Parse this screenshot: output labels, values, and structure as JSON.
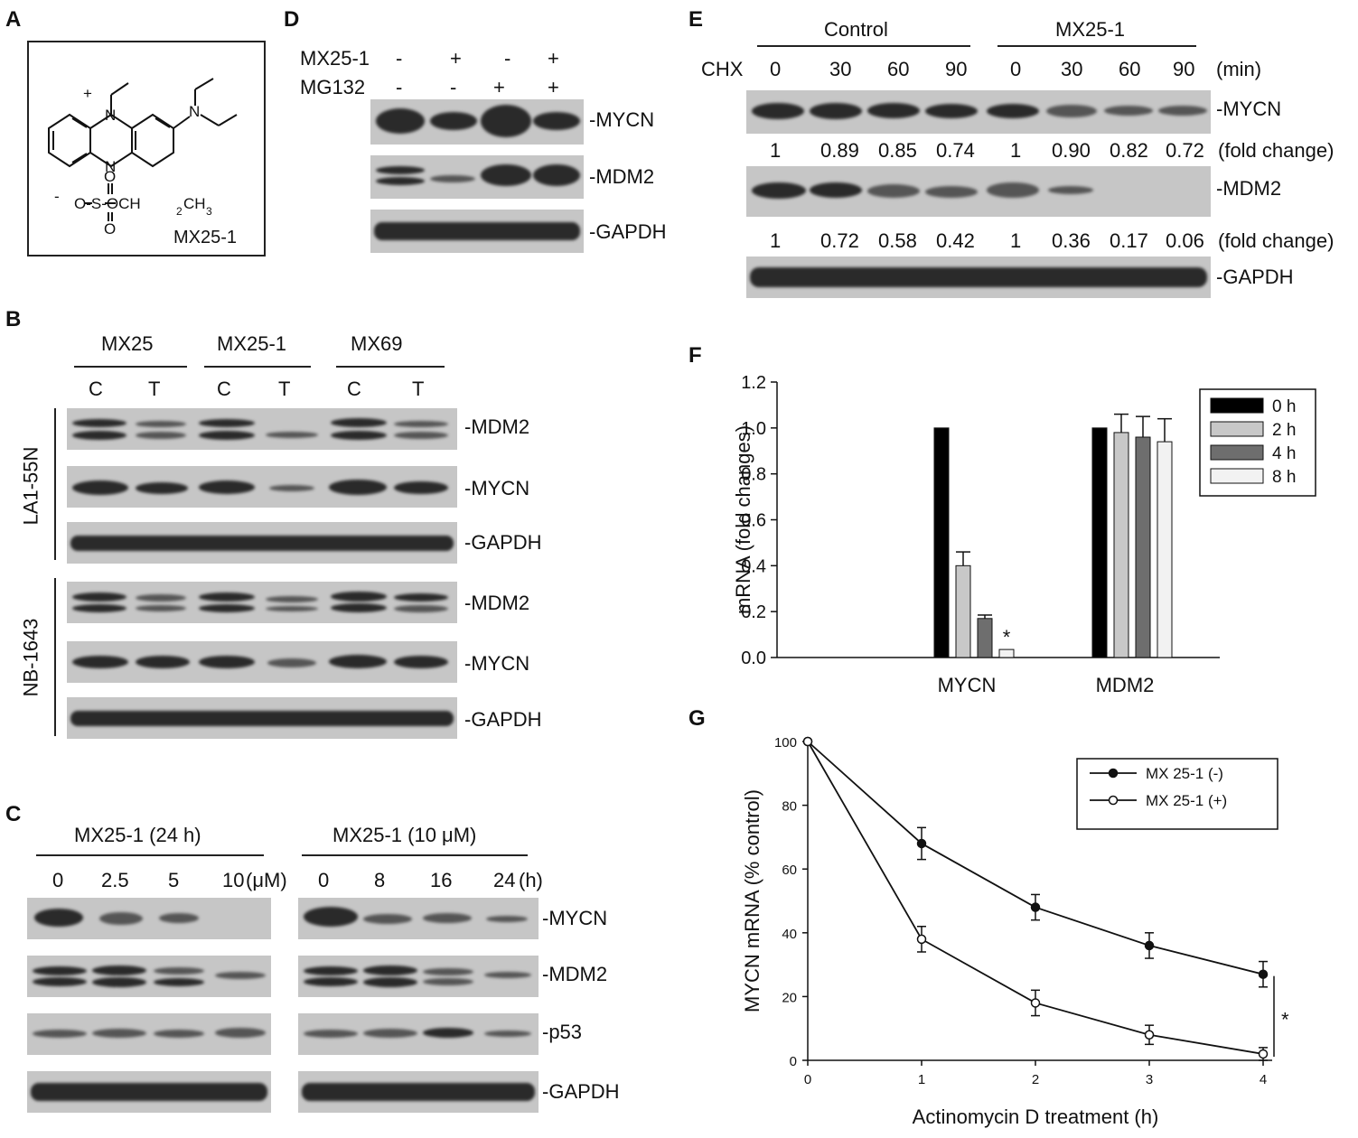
{
  "panels": {
    "a": {
      "letter": "A",
      "compound_label": "MX25-1",
      "structure": {
        "plus": "+",
        "minus": "-",
        "nitrogen": "N",
        "ester_prefix": "O-S-OCH",
        "ester_sub2": "2",
        "ester_ch3": "CH",
        "sub3": "3",
        "oxygen": "O"
      }
    },
    "b": {
      "letter": "B",
      "groups": [
        "MX25",
        "MX25-1",
        "MX69"
      ],
      "lanes": [
        "C",
        "T",
        "C",
        "T",
        "C",
        "T"
      ],
      "cell_lines": [
        "LA1-55N",
        "NB-1643"
      ],
      "bands": [
        "-MDM2",
        "-MYCN",
        "-GAPDH",
        "-MDM2",
        "-MYCN",
        "-GAPDH"
      ]
    },
    "c": {
      "letter": "C",
      "left_title": "MX25-1  (24  h)",
      "left_lanes": [
        "0",
        "2.5",
        "5",
        "10"
      ],
      "left_unit": "(μM)",
      "right_title": "MX25-1  (10 μM)",
      "right_lanes": [
        "0",
        "8",
        "16",
        "24"
      ],
      "right_unit": "(h)",
      "bands": [
        "-MYCN",
        "-MDM2",
        "-p53",
        "-GAPDH"
      ]
    },
    "d": {
      "letter": "D",
      "rows": [
        {
          "label": "MX25-1",
          "signs": [
            "-",
            "+",
            "-",
            "+"
          ]
        },
        {
          "label": "MG132",
          "signs": [
            "-",
            "-",
            "+",
            "+"
          ]
        }
      ],
      "bands": [
        "-MYCN",
        "-MDM2",
        "-GAPDH"
      ]
    },
    "e": {
      "letter": "E",
      "groups": [
        "Control",
        "MX25-1"
      ],
      "chx_label": "CHX",
      "lanes": [
        "0",
        "30",
        "60",
        "90",
        "0",
        "30",
        "60",
        "90"
      ],
      "unit": "(min)",
      "bands": [
        "-MYCN",
        "-MDM2",
        "-GAPDH"
      ],
      "mycn_fold": [
        "1",
        "0.89",
        "0.85",
        "0.74",
        "1",
        "0.90",
        "0.82",
        "0.72"
      ],
      "mdm2_fold": [
        "1",
        "0.72",
        "0.58",
        "0.42",
        "1",
        "0.36",
        "0.17",
        "0.06"
      ],
      "fold_label": "(fold change)"
    },
    "f": {
      "letter": "F"
    },
    "g": {
      "letter": "G"
    }
  },
  "chart_data": [
    {
      "id": "F",
      "type": "bar",
      "categories": [
        "MYCN",
        "MDM2"
      ],
      "series": [
        {
          "name": "0 h",
          "values": [
            1.0,
            1.0
          ],
          "errors": [
            0,
            0
          ],
          "color": "#000000"
        },
        {
          "name": "2 h",
          "values": [
            0.4,
            0.98
          ],
          "errors": [
            0.06,
            0.08
          ],
          "color": "#c8c8c8"
        },
        {
          "name": "4 h",
          "values": [
            0.17,
            0.96
          ],
          "errors": [
            0.015,
            0.09
          ],
          "color": "#6e6e6e"
        },
        {
          "name": "8 h",
          "values": [
            0.035,
            0.94
          ],
          "errors": [
            0,
            0.1
          ],
          "color": "#f2f2f2"
        }
      ],
      "ylabel": "mRNA (fold changes)",
      "ylim": [
        0.0,
        1.2
      ],
      "yticks": [
        "0.0",
        "0.2",
        "0.4",
        "0.6",
        "0.8",
        "1.0",
        "1.2"
      ],
      "annotation": "*",
      "legend_position": "top-right",
      "grid": false
    },
    {
      "id": "G",
      "type": "line",
      "x": [
        0,
        1,
        2,
        3,
        4
      ],
      "series": [
        {
          "name": "MX 25-1 (-)",
          "values": [
            100,
            68,
            48,
            36,
            27
          ],
          "errors": [
            0,
            5,
            4,
            4,
            4
          ],
          "marker": "filled"
        },
        {
          "name": "MX 25-1 (+)",
          "values": [
            100,
            38,
            18,
            8,
            2
          ],
          "errors": [
            0,
            4,
            4,
            3,
            2
          ],
          "marker": "open"
        }
      ],
      "xlabel": "Actinomycin D treatment (h)",
      "ylabel": "MYCN mRNA (% control)",
      "xlim": [
        0,
        4
      ],
      "ylim": [
        0,
        100
      ],
      "xticks": [
        "0",
        "1",
        "2",
        "3",
        "4"
      ],
      "yticks": [
        "0",
        "20",
        "40",
        "60",
        "80",
        "100"
      ],
      "annotation": "*",
      "legend_position": "top-right",
      "grid": false
    }
  ]
}
